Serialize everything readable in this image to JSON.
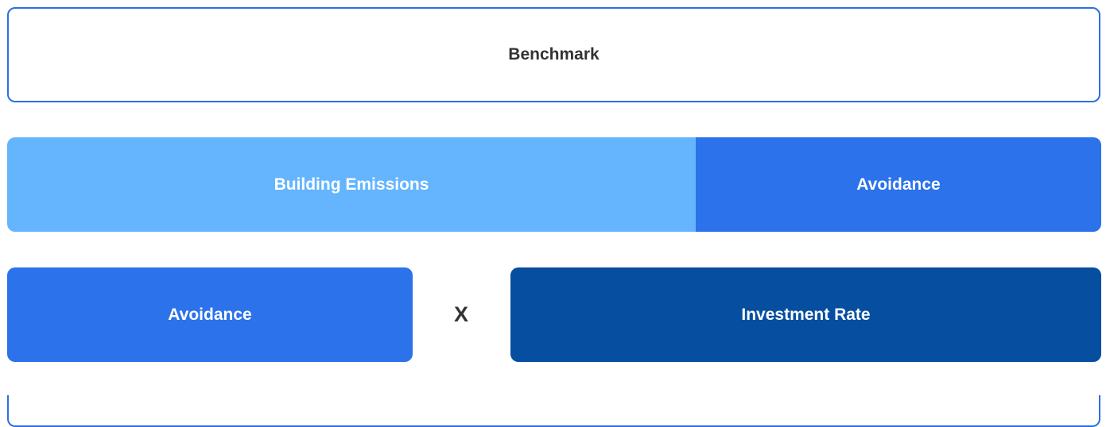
{
  "benchmark": {
    "label": "Benchmark"
  },
  "row1": {
    "left": "Building Emissions",
    "right": "Avoidance"
  },
  "row2": {
    "left": "Avoidance",
    "operator": "X",
    "right": "Investment Rate"
  }
}
